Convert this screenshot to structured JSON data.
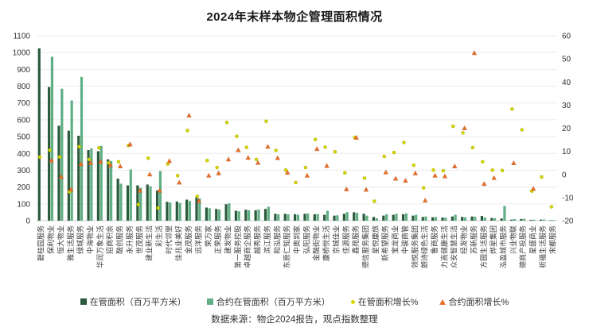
{
  "title": "2024年末样本物企管理面积情况",
  "footer": {
    "source": "数据来源：物企2024报告，观点指数整理"
  },
  "chart_data": {
    "type": "bar",
    "subtype": "dual-axis bars with growth scatter",
    "title": "2024年末样本物企管理面积情况",
    "grid": true,
    "legend_position": "bottom",
    "left_axis": {
      "min": 0,
      "max": 1100,
      "step": 100
    },
    "right_axis": {
      "min": -20,
      "max": 60,
      "step": 10
    },
    "colors": {
      "managed_bar": "#2a5a3c",
      "contract_bar": "#60ae84",
      "managed_growth_dot": "#d8d600",
      "contract_growth_triangle": "#e8702a",
      "gridline": "#ececec",
      "baseline": "#cfcfcf",
      "text": "#333333"
    },
    "categories": [
      "碧桂园服务",
      "保利物业",
      "恒大物业",
      "雅生活服务",
      "绿城服务",
      "中海物业",
      "华润万象生活",
      "招商积余",
      "融创服务",
      "永升服务",
      "世茂服务",
      "建业新生活",
      "彩生活",
      "时代邻里",
      "佳兆业美好",
      "金茂服务",
      "远洋服务",
      "荣万家",
      "正荣服务",
      "建发物业",
      "第一服务控股",
      "卓越商企服务",
      "越秀服务",
      "滨江服务",
      "和泓服务",
      "东原仁知服务",
      "中奥到家",
      "弘阳服务",
      "金融街物业",
      "康桥悦生活",
      "京城佳业",
      "佳源服务",
      "鑫苑服务",
      "德信服务集团",
      "星悦康旅",
      "新希望服务",
      "宝龙商业",
      "中骏商管",
      "领悦服务集团",
      "朗诗绿色生活",
      "鲁商服务",
      "力高健康生活",
      "众安智慧生活",
      "经发物业",
      "苏新服务",
      "方圆生活服务",
      "烨星集团",
      "泓盈城市服务",
      "兴业物联",
      "德商产投服务",
      "星盛商业",
      "祈福生活服务",
      "宋都服务"
    ],
    "series": [
      {
        "name": "在管面积（百万平方米）",
        "type": "bar",
        "axis": "left",
        "color": "#2a5a3c",
        "values": [
          1025,
          795,
          565,
          535,
          505,
          420,
          413,
          365,
          250,
          210,
          210,
          215,
          180,
          112,
          114,
          125,
          140,
          78,
          70,
          98,
          59,
          65,
          62,
          70,
          41,
          41,
          38,
          41,
          38,
          35,
          30,
          41,
          50,
          41,
          22,
          30,
          35,
          38,
          30,
          22,
          20,
          19,
          25,
          22,
          25,
          28,
          16,
          13,
          6,
          10,
          5,
          6,
          3
        ]
      },
      {
        "name": "合约在管面积（百万平方米）",
        "type": "bar",
        "axis": "left",
        "color": "#60ae84",
        "values": [
          null,
          975,
          785,
          715,
          855,
          430,
          445,
          355,
          220,
          305,
          195,
          205,
          295,
          108,
          105,
          117,
          132,
          74,
          66,
          103,
          56,
          62,
          66,
          83,
          38,
          38,
          35,
          43,
          40,
          59,
          32,
          51,
          46,
          30,
          14,
          38,
          41,
          43,
          35,
          25,
          22,
          18,
          35,
          20,
          23,
          19,
          15,
          88,
          10,
          11,
          6,
          7,
          4
        ]
      },
      {
        "name": "在管面积增长%",
        "type": "scatter-dot",
        "axis": "right",
        "color": "#d8d600",
        "values": [
          7.5,
          10.5,
          7.5,
          -7.5,
          12,
          6.5,
          11.5,
          5,
          5.5,
          12.5,
          -13,
          7,
          -14.5,
          4.5,
          -0.5,
          19,
          -9.5,
          6,
          3,
          22.5,
          16.5,
          11.7,
          6.5,
          23,
          10.4,
          1.9,
          -3.5,
          3,
          15.1,
          11.8,
          9.8,
          0.7,
          16,
          -1.6,
          -11.6,
          7.8,
          9.5,
          13.8,
          4,
          -5.8,
          1.9,
          1.6,
          20.8,
          18,
          11.6,
          5.5,
          1.9,
          1.7,
          28.3,
          19.3,
          -7.2,
          -1.1,
          -14
        ]
      },
      {
        "name": "合约面积增长%",
        "type": "scatter-triangle",
        "axis": "right",
        "color": "#e8702a",
        "values": [
          null,
          6,
          -1,
          -6.5,
          4.5,
          5,
          5.5,
          4,
          3.5,
          13,
          -7,
          0,
          -7,
          5.8,
          -3.5,
          25.5,
          -11.5,
          -0.5,
          0.5,
          6.5,
          10.5,
          7.2,
          5,
          12,
          7.1,
          0.8,
          null,
          -0.5,
          11,
          3.7,
          null,
          -6.4,
          15.9,
          -6.6,
          null,
          0.9,
          -1.8,
          -2.7,
          0.5,
          -11.3,
          -0.5,
          -0.8,
          3.5,
          20,
          52.5,
          -4.1,
          -1.5,
          null,
          4.9,
          null,
          -6.2,
          null,
          null
        ]
      }
    ]
  }
}
